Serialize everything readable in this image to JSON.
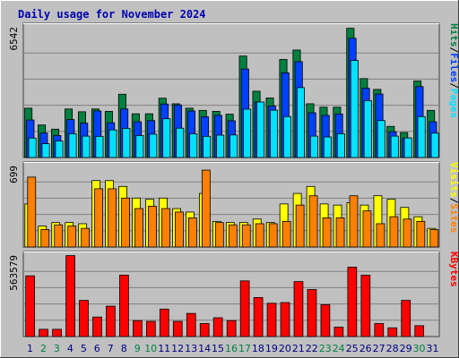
{
  "title": "Daily usage for November 2024",
  "colors": {
    "background": "#c0c0c0",
    "plot_background": "#c0c0c0",
    "grid": "#808080",
    "title": "#0000b0",
    "pages": "#00e0ff",
    "files": "#0040ff",
    "hits": "#008040",
    "sites": "#ff8000",
    "visits": "#ffff00",
    "kbytes": "#ff0000",
    "weekend_day": "#008040",
    "weekday": "#000080"
  },
  "chart_data": [
    {
      "type": "bar",
      "panel": "hits-files-pages",
      "ymax_label": "6542",
      "ylim": [
        0,
        6542
      ],
      "legend": [
        "Pages",
        "Files",
        "Hits"
      ],
      "categories": [
        "1",
        "2",
        "3",
        "4",
        "5",
        "6",
        "7",
        "8",
        "9",
        "10",
        "11",
        "12",
        "13",
        "14",
        "15",
        "16",
        "17",
        "18",
        "19",
        "20",
        "21",
        "22",
        "23",
        "24",
        "25",
        "26",
        "27",
        "28",
        "29",
        "30",
        "31"
      ],
      "series": [
        {
          "name": "Hits",
          "values": [
            2470,
            1630,
            1420,
            2430,
            2290,
            2430,
            2310,
            3170,
            2190,
            2190,
            2970,
            2690,
            2470,
            2360,
            2310,
            2170,
            5080,
            3320,
            2980,
            4910,
            5380,
            2690,
            2520,
            2520,
            6470,
            3950,
            3410,
            1560,
            1250,
            3830,
            2360
          ]
        },
        {
          "name": "Files",
          "values": [
            1880,
            1230,
            1100,
            1900,
            1720,
            2330,
            1740,
            2430,
            1790,
            1850,
            2680,
            2630,
            2330,
            2040,
            2110,
            1840,
            4430,
            2770,
            2580,
            4240,
            4800,
            2240,
            2110,
            2180,
            5970,
            3470,
            3180,
            1290,
            980,
            3550,
            1790
          ]
        },
        {
          "name": "Pages",
          "values": [
            970,
            690,
            830,
            1190,
            1070,
            1060,
            1380,
            1460,
            1100,
            1170,
            1940,
            1470,
            1190,
            1060,
            1120,
            1130,
            2420,
            2780,
            2370,
            2050,
            3500,
            1070,
            1030,
            1190,
            4860,
            2850,
            1850,
            1070,
            980,
            2050,
            1220
          ]
        }
      ]
    },
    {
      "type": "bar",
      "panel": "visits-sites",
      "ymax_label": "699",
      "ylim": [
        0,
        699
      ],
      "legend": [
        "Sites",
        "Visits"
      ],
      "categories": [
        "1",
        "2",
        "3",
        "4",
        "5",
        "6",
        "7",
        "8",
        "9",
        "10",
        "11",
        "12",
        "13",
        "14",
        "15",
        "16",
        "17",
        "18",
        "19",
        "20",
        "21",
        "22",
        "23",
        "24",
        "25",
        "26",
        "27",
        "28",
        "29",
        "30",
        "31"
      ],
      "series": [
        {
          "name": "Visits",
          "values": [
            370,
            180,
            210,
            210,
            200,
            570,
            570,
            520,
            420,
            410,
            420,
            330,
            300,
            460,
            220,
            210,
            210,
            240,
            210,
            370,
            460,
            520,
            370,
            360,
            380,
            360,
            440,
            410,
            340,
            260,
            160
          ]
        },
        {
          "name": "Sites",
          "values": [
            600,
            150,
            190,
            180,
            160,
            500,
            500,
            420,
            330,
            350,
            330,
            300,
            250,
            660,
            210,
            190,
            190,
            200,
            200,
            220,
            360,
            440,
            250,
            250,
            440,
            310,
            200,
            260,
            240,
            220,
            150
          ]
        }
      ]
    },
    {
      "type": "bar",
      "panel": "kbytes",
      "ymax_label": "563579",
      "ylim": [
        0,
        563579
      ],
      "legend": [
        "KBytes"
      ],
      "categories": [
        "1",
        "2",
        "3",
        "4",
        "5",
        "6",
        "7",
        "8",
        "9",
        "10",
        "11",
        "12",
        "13",
        "14",
        "15",
        "16",
        "17",
        "18",
        "19",
        "20",
        "21",
        "22",
        "23",
        "24",
        "25",
        "26",
        "27",
        "28",
        "29",
        "30",
        "31"
      ],
      "series": [
        {
          "name": "KBytes",
          "values": [
            420000,
            50000,
            50000,
            560000,
            250000,
            135000,
            210000,
            425000,
            110000,
            105000,
            190000,
            105000,
            160000,
            90000,
            130000,
            110000,
            385000,
            270000,
            230000,
            235000,
            380000,
            325000,
            220000,
            65000,
            480000,
            425000,
            90000,
            60000,
            250000,
            75000,
            0
          ]
        }
      ]
    }
  ],
  "x_labels": [
    "1",
    "2",
    "3",
    "4",
    "5",
    "6",
    "7",
    "8",
    "9",
    "10",
    "11",
    "12",
    "13",
    "14",
    "15",
    "16",
    "17",
    "18",
    "19",
    "20",
    "21",
    "22",
    "23",
    "24",
    "25",
    "26",
    "27",
    "28",
    "29",
    "30",
    "31"
  ],
  "weekend_days": [
    2,
    3,
    9,
    10,
    16,
    17,
    23,
    24,
    30
  ]
}
